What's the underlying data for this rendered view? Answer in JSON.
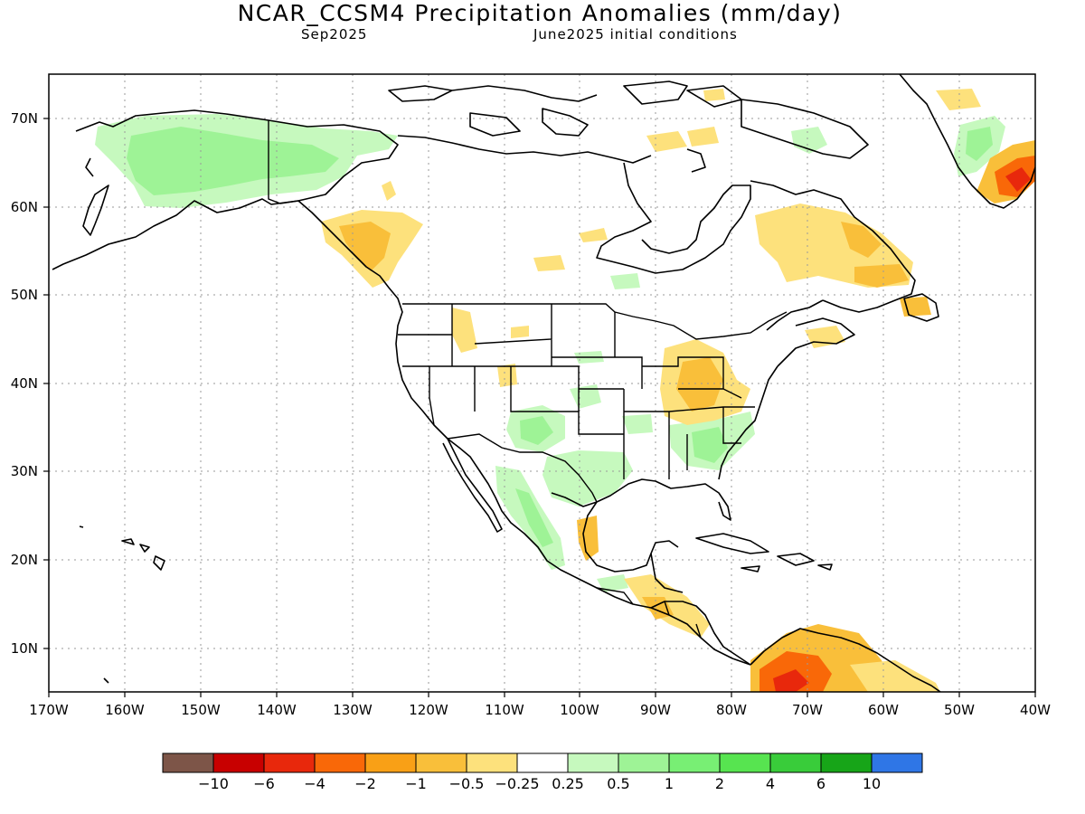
{
  "title": "NCAR_CCSM4 Precipitation Anomalies (mm/day)",
  "subtitle_left": "Sep2025",
  "subtitle_right": "June2025 initial conditions",
  "lat_labels": [
    "70N",
    "60N",
    "50N",
    "40N",
    "30N",
    "20N",
    "10N"
  ],
  "lon_labels": [
    "170W",
    "160W",
    "150W",
    "140W",
    "130W",
    "120W",
    "110W",
    "100W",
    "90W",
    "80W",
    "70W",
    "60W",
    "50W",
    "40W"
  ],
  "colorbar": {
    "colors": [
      "#7d5548",
      "#c80000",
      "#e8280c",
      "#f96808",
      "#f9a016",
      "#f9bf3a",
      "#fde17c",
      "#ffffff",
      "#c6f9be",
      "#9ef396",
      "#78ef74",
      "#57e450",
      "#39cc3a",
      "#17a518",
      "#2f76e6"
    ],
    "labels": [
      "−10",
      "−6",
      "−4",
      "−2",
      "−1",
      "−0.5",
      "−0.25",
      "0.25",
      "0.5",
      "1",
      "2",
      "4",
      "6",
      "10"
    ]
  },
  "palette": {
    "border": "#000000",
    "grid": "#9a9a9a"
  }
}
